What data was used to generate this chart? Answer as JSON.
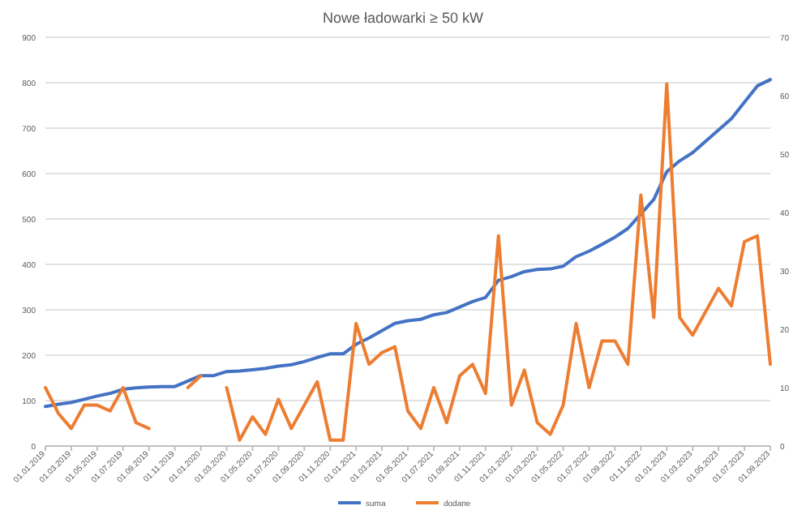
{
  "chart_data": {
    "type": "line",
    "title": "Nowe ładowarki ≥ 50 kW",
    "categories": [
      "01.01.2019",
      null,
      "01.03.2019",
      null,
      "01.05.2019",
      null,
      "01.07.2019",
      null,
      "01.09.2019",
      null,
      "01.11.2019",
      null,
      "01.01.2020",
      null,
      "01.03.2020",
      null,
      "01.05.2020",
      null,
      "01.07.2020",
      null,
      "01.09.2020",
      null,
      "01.11.2020",
      null,
      "01.01.2021",
      null,
      "01.03.2021",
      null,
      "01.05.2021",
      null,
      "01.07.2021",
      null,
      "01.09.2021",
      null,
      "01.11.2021",
      null,
      "01.01.2022",
      null,
      "01.03.2022",
      null,
      "01.05.2022",
      null,
      "01.07.2022",
      null,
      "01.09.2022",
      null,
      "01.11.2022",
      null,
      "01.01.2023",
      null,
      "01.03.2023",
      null,
      "01.05.2023",
      null,
      "01.07.2023",
      null,
      "01.09.2023"
    ],
    "series": [
      {
        "name": "suma",
        "color": "#4472c4",
        "values": [
          87,
          92,
          96,
          103,
          110,
          116,
          125,
          128,
          130,
          131,
          131,
          143,
          155,
          155,
          164,
          165,
          168,
          171,
          176,
          179,
          186,
          195,
          203,
          203,
          224,
          238,
          254,
          270,
          276,
          279,
          289,
          294,
          306,
          318,
          327,
          365,
          373,
          384,
          389,
          390,
          396,
          417,
          429,
          444,
          460,
          479,
          511,
          543,
          604,
          628,
          646,
          671,
          696,
          721,
          757,
          793,
          807
        ]
      },
      {
        "name": "dodane",
        "color": "#ed7d31",
        "axis": "y2",
        "values": [
          10,
          5.6,
          3,
          7,
          7,
          6,
          10,
          4,
          3,
          null,
          null,
          10,
          12,
          null,
          10,
          1,
          5,
          2,
          8,
          3,
          7,
          11,
          1,
          1,
          21,
          14,
          16,
          17,
          6,
          3,
          10,
          4,
          12,
          14,
          9,
          36,
          7,
          13,
          4,
          2,
          7,
          21,
          10,
          18,
          18,
          14,
          43,
          22,
          62,
          22,
          19,
          23,
          27,
          24,
          35,
          36,
          14
        ]
      }
    ],
    "ylim": [
      0,
      900
    ],
    "yticks": [
      0,
      100,
      200,
      300,
      400,
      500,
      600,
      700,
      800,
      900
    ],
    "y2lim": [
      0,
      70
    ],
    "y2ticks": [
      0,
      10,
      20,
      30,
      40,
      50,
      60,
      70
    ],
    "grid": "y",
    "legend": "bottom",
    "marker": "none",
    "line_style": "solid"
  }
}
